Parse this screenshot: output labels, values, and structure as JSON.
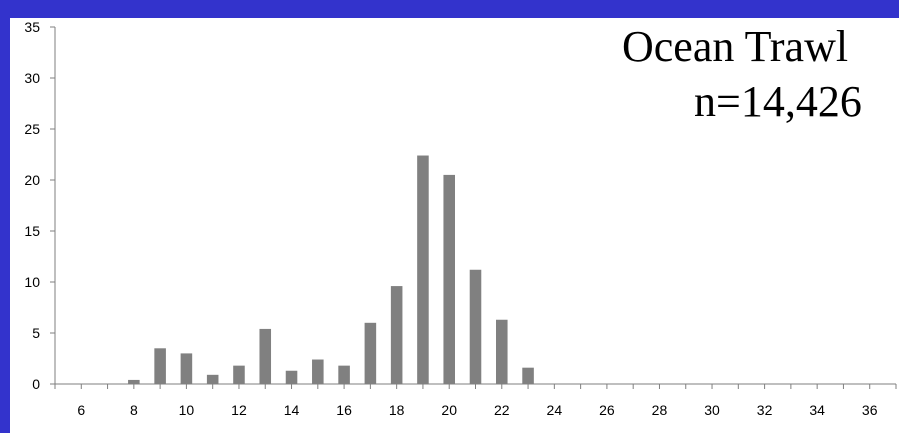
{
  "chart_data": {
    "type": "bar",
    "title": "Ocean Trawl",
    "subtitle": "n=14,426",
    "xlabel": "",
    "ylabel": "",
    "x_ticks": [
      6,
      8,
      10,
      12,
      14,
      16,
      18,
      20,
      22,
      24,
      26,
      28,
      30,
      32,
      34,
      36
    ],
    "y_ticks": [
      0,
      5,
      10,
      15,
      20,
      25,
      30,
      35
    ],
    "xlim": [
      5,
      37
    ],
    "ylim": [
      0,
      35
    ],
    "categories": [
      8,
      9,
      10,
      11,
      12,
      13,
      14,
      15,
      16,
      17,
      18,
      19,
      20,
      21,
      22,
      23
    ],
    "values": [
      0.4,
      3.5,
      3.0,
      0.9,
      1.8,
      5.4,
      1.3,
      2.4,
      1.8,
      6.0,
      9.6,
      22.4,
      20.5,
      11.2,
      6.3,
      1.6
    ],
    "grid": false,
    "legend": "none",
    "colors": {
      "bar": "#808080",
      "frame": "#3333cc",
      "axis": "#7f7f7f"
    }
  }
}
